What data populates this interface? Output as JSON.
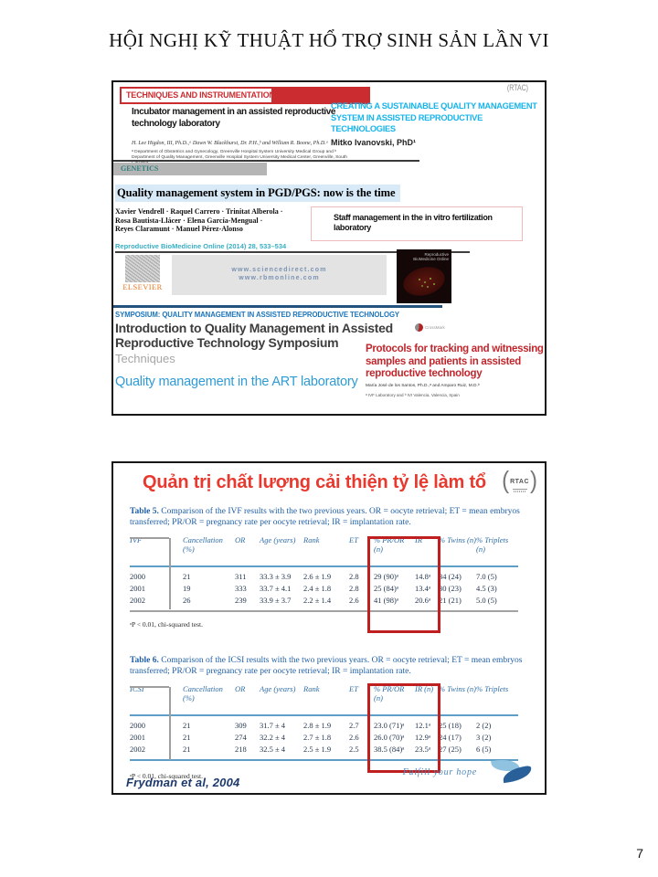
{
  "page": {
    "title": "HỘI NGHỊ KỸ THUẬT HỔ TRỢ SINH SẢN LẦN VI",
    "page_number": "7"
  },
  "panel1": {
    "banner_label": "TECHNIQUES AND INSTRUMENTATION",
    "rtac_partial": "(RTAC)",
    "incubator": {
      "title": "Incubator management in an assisted reproductive technology laboratory",
      "authors": "H. Lee Higdon, III, Ph.D.,ᵃ Dawn W. Blackhurst, Dr. P.H.,ᵇ and William R. Boone, Ph.D.ᵃ",
      "affiliation": "ᵃ Department of Obstetrics and Gynecology, Greenville Hospital System University Medical Group and ᵇ Department of Quality Management, Greenville Hospital System University Medical Center, Greenville, South Carolina"
    },
    "creating": {
      "title": "CREATING A SUSTAINABLE QUALITY MANAGEMENT SYSTEM IN ASSISTED REPRODUCTIVE TECHNOLOGIES",
      "author": "Mitko Ivanovski, PhD¹"
    },
    "genetics_label": "GENETICS",
    "pgd": {
      "title": "Quality management system in PGD/PGS: now is the time",
      "authors_line1": "Xavier Vendrell · Raquel Carrero · Trinitat Alberola ·",
      "authors_line2": "Rosa Bautista-Llácer · Elena García-Mengual ·",
      "authors_line3": "Reyes Claramunt · Manuel Pérez-Alonso",
      "citation": "Reproductive BioMedicine Online (2014) 28, 533–534"
    },
    "staff_title": "Staff management in the in vitro fertilization laboratory",
    "elsevier_label": "ELSEVIER",
    "url1": "www.sciencedirect.com",
    "url2": "www.rbmonline.com",
    "cover_title": "Reproductive BioMedicine Online",
    "symposium_label": "SYMPOSIUM: QUALITY MANAGEMENT IN ASSISTED REPRODUCTIVE TECHNOLOGY",
    "intro_title": "Introduction to Quality Management in Assisted Reproductive Technology Symposium",
    "crossmark_label": "CrossMark",
    "techniques_label": "Techniques",
    "art_title": "Quality management in the ART laboratory",
    "protocols": {
      "title": "Protocols for tracking and witnessing samples and patients in assisted reproductive technology",
      "authors": "María José de los Santos, Ph.D.,ᵃ and Amparo Ruiz, M.D.ᵇ",
      "affiliation": "ᵃ IVF Laboratory and ᵇ IVI Valencia, Valencia, Spain"
    }
  },
  "panel2": {
    "title": "Quản trị chất lượng cải thiện tỷ lệ làm tổ",
    "rtac_label": "RTAC",
    "table5": {
      "caption_label": "Table 5.",
      "caption_text": " Comparison of the IVF results with the two previous years. OR = oocyte retrieval; ET = mean embryos transferred; PR/OR = pregnancy rate per oocyte retrieval; IR = implantation rate.",
      "headers": [
        "IVF",
        "Cancellation (%)",
        "OR",
        "Age (years)",
        "Rank",
        "ET",
        "% PR/OR (n)",
        "IR",
        "% Twins (n)",
        "% Triplets (n)"
      ],
      "rows": [
        [
          "2000",
          "21",
          "311",
          "33.3 ± 3.9",
          "2.6 ± 1.9",
          "2.8",
          "29 (90)ᵃ",
          "14.8ᵃ",
          "34 (24)",
          "7.0 (5)"
        ],
        [
          "2001",
          "19",
          "333",
          "33.7 ± 4.1",
          "2.4 ± 1.8",
          "2.8",
          "25 (84)ᵃ",
          "13.4ᵃ",
          "30 (23)",
          "4.5 (3)"
        ],
        [
          "2002",
          "26",
          "239",
          "33.9 ± 3.7",
          "2.2 ± 1.4",
          "2.6",
          "41 (98)ᵃ",
          "20.6ᵃ",
          "21 (21)",
          "5.0 (5)"
        ]
      ],
      "footnote": "ᵃP < 0.01, chi-squared test."
    },
    "table6": {
      "caption_label": "Table 6.",
      "caption_text": " Comparison of the ICSI results with the two previous years. OR = oocyte retrieval; ET = mean embryos transferred; PR/OR = pregnancy rate per oocyte retrieval; IR = implantation rate.",
      "headers": [
        "ICSI",
        "Cancellation (%)",
        "OR",
        "Age (years)",
        "Rank",
        "ET",
        "% PR/OR (n)",
        "IR (n)",
        "% Twins (n)",
        "% Triplets"
      ],
      "rows": [
        [
          "2000",
          "21",
          "309",
          "31.7 ± 4",
          "2.8 ± 1.9",
          "2.7",
          "23.0 (71)ᵃ",
          "12.1ᵃ",
          "25 (18)",
          "2 (2)"
        ],
        [
          "2001",
          "21",
          "274",
          "32.2 ± 4",
          "2.7 ± 1.8",
          "2.6",
          "26.0 (70)ᵃ",
          "12.9ᵃ",
          "24 (17)",
          "3 (2)"
        ],
        [
          "2002",
          "21",
          "218",
          "32.5 ± 4",
          "2.5 ± 1.9",
          "2.5",
          "38.5 (84)ᵃ",
          "23.5ᵃ",
          "27 (25)",
          "6 (5)"
        ]
      ],
      "footnote": "ᵃP < 0.01, chi-squared test."
    },
    "source": "Frydman et al, 2004",
    "slogan": "Fulfill your hope"
  },
  "colors": {
    "accent_red": "#cb2c30",
    "slide_title_red": "#e8392f",
    "table_blue": "#2f6ea8",
    "cyan_heading": "#17b4e9",
    "highlight_box_red": "#c01f1f",
    "art_blue": "#2e9bd6"
  }
}
